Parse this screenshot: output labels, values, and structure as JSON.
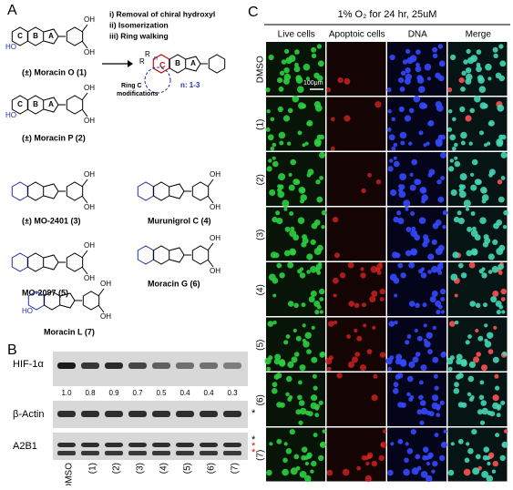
{
  "panel_labels": [
    "A",
    "B",
    "C"
  ],
  "panel_a": {
    "steps": [
      "i) Removal of chiral hydroxyl",
      "ii) Isomerization",
      "iii) Ring walking"
    ],
    "ring_letters": [
      "C",
      "B",
      "A"
    ],
    "template_labels": [
      "R",
      "R",
      "n",
      "C"
    ],
    "ring_note": [
      "Ring C",
      "modifications"
    ],
    "n_range": "n: 1-3",
    "compounds": [
      {
        "name": "(±) Moracin O (1)",
        "substituents": [
          "OH",
          "OH",
          "HO"
        ]
      },
      {
        "name": "(±) Moracin P (2)",
        "substituents": [
          "OH",
          "OH",
          "HO"
        ]
      },
      {
        "name": "(±) MO-2401 (3)",
        "substituents": [
          "OH",
          "OH"
        ]
      },
      {
        "name": "Murunigrol C (4)",
        "substituents": [
          "OH",
          "OH"
        ]
      },
      {
        "name": "MO-2097 (5)",
        "substituents": [
          "OH",
          "OH"
        ]
      },
      {
        "name": "Moracin G (6)",
        "substituents": [
          "OH",
          "OH"
        ]
      },
      {
        "name": "Moracin L (7)",
        "substituents": [
          "OH",
          "OH",
          "HO"
        ]
      }
    ]
  },
  "panel_b": {
    "lanes": [
      "DMSO",
      "(1)",
      "(2)",
      "(3)",
      "(4)",
      "(5)",
      "(6)",
      "(7)"
    ],
    "rows": [
      {
        "label": "HIF-1α",
        "marks": []
      },
      {
        "label": "β-Actin",
        "marks": [
          {
            "text": "*",
            "color": "#000000"
          }
        ]
      },
      {
        "label": "A2B1",
        "marks": [
          {
            "text": "*",
            "color": "#000000"
          },
          {
            "text": "*",
            "color": "#d01010"
          },
          {
            "text": "*",
            "color": "#d01010"
          }
        ]
      }
    ],
    "densities": [
      "1.0",
      "0.8",
      "0.9",
      "0.7",
      "0.5",
      "0.4",
      "0.4",
      "0.3"
    ]
  },
  "panel_c": {
    "title": "1% O₂ for 24 hr, 25uM",
    "columns": [
      "Live cells",
      "Apoptoic cells",
      "DNA",
      "Merge"
    ],
    "rows": [
      "DMSO",
      "(1)",
      "(2)",
      "(3)",
      "(4)",
      "(5)",
      "(6)",
      "(7)"
    ],
    "scale_bar": "100μm"
  }
}
